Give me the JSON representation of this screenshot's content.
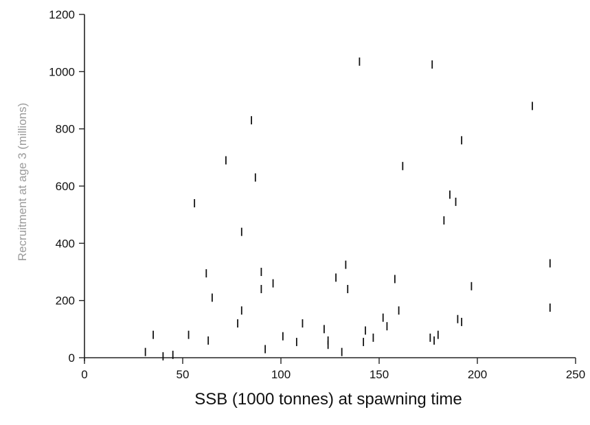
{
  "chart_data": {
    "type": "scatter",
    "xlabel": "SSB (1000 tonnes) at spawning time",
    "ylabel": "Recruitment at age 3 (millions)",
    "xlim": [
      0,
      250
    ],
    "ylim": [
      0,
      1200
    ],
    "xticks": [
      "0",
      "50",
      "100",
      "150",
      "200",
      "250"
    ],
    "yticks": [
      "0",
      "200",
      "400",
      "600",
      "800",
      "1000",
      "1200"
    ],
    "grid": false,
    "points": [
      {
        "x": 31,
        "y": 20
      },
      {
        "x": 35,
        "y": 80
      },
      {
        "x": 40,
        "y": 5
      },
      {
        "x": 45,
        "y": 10
      },
      {
        "x": 53,
        "y": 80
      },
      {
        "x": 56,
        "y": 540
      },
      {
        "x": 62,
        "y": 295
      },
      {
        "x": 63,
        "y": 60
      },
      {
        "x": 65,
        "y": 210
      },
      {
        "x": 72,
        "y": 690
      },
      {
        "x": 78,
        "y": 120
      },
      {
        "x": 80,
        "y": 165
      },
      {
        "x": 80,
        "y": 440
      },
      {
        "x": 85,
        "y": 830
      },
      {
        "x": 87,
        "y": 630
      },
      {
        "x": 90,
        "y": 300
      },
      {
        "x": 90,
        "y": 240
      },
      {
        "x": 92,
        "y": 30
      },
      {
        "x": 96,
        "y": 260
      },
      {
        "x": 101,
        "y": 75
      },
      {
        "x": 108,
        "y": 55
      },
      {
        "x": 111,
        "y": 120
      },
      {
        "x": 122,
        "y": 100
      },
      {
        "x": 124,
        "y": 60
      },
      {
        "x": 124,
        "y": 45
      },
      {
        "x": 128,
        "y": 280
      },
      {
        "x": 131,
        "y": 20
      },
      {
        "x": 133,
        "y": 325
      },
      {
        "x": 134,
        "y": 240
      },
      {
        "x": 140,
        "y": 1035
      },
      {
        "x": 142,
        "y": 55
      },
      {
        "x": 143,
        "y": 95
      },
      {
        "x": 147,
        "y": 70
      },
      {
        "x": 152,
        "y": 140
      },
      {
        "x": 154,
        "y": 110
      },
      {
        "x": 158,
        "y": 275
      },
      {
        "x": 160,
        "y": 165
      },
      {
        "x": 162,
        "y": 670
      },
      {
        "x": 176,
        "y": 70
      },
      {
        "x": 177,
        "y": 1025
      },
      {
        "x": 178,
        "y": 60
      },
      {
        "x": 180,
        "y": 80
      },
      {
        "x": 183,
        "y": 480
      },
      {
        "x": 186,
        "y": 570
      },
      {
        "x": 189,
        "y": 545
      },
      {
        "x": 190,
        "y": 135
      },
      {
        "x": 192,
        "y": 125
      },
      {
        "x": 192,
        "y": 760
      },
      {
        "x": 197,
        "y": 250
      },
      {
        "x": 228,
        "y": 880
      },
      {
        "x": 237,
        "y": 330
      },
      {
        "x": 237,
        "y": 175
      }
    ]
  }
}
